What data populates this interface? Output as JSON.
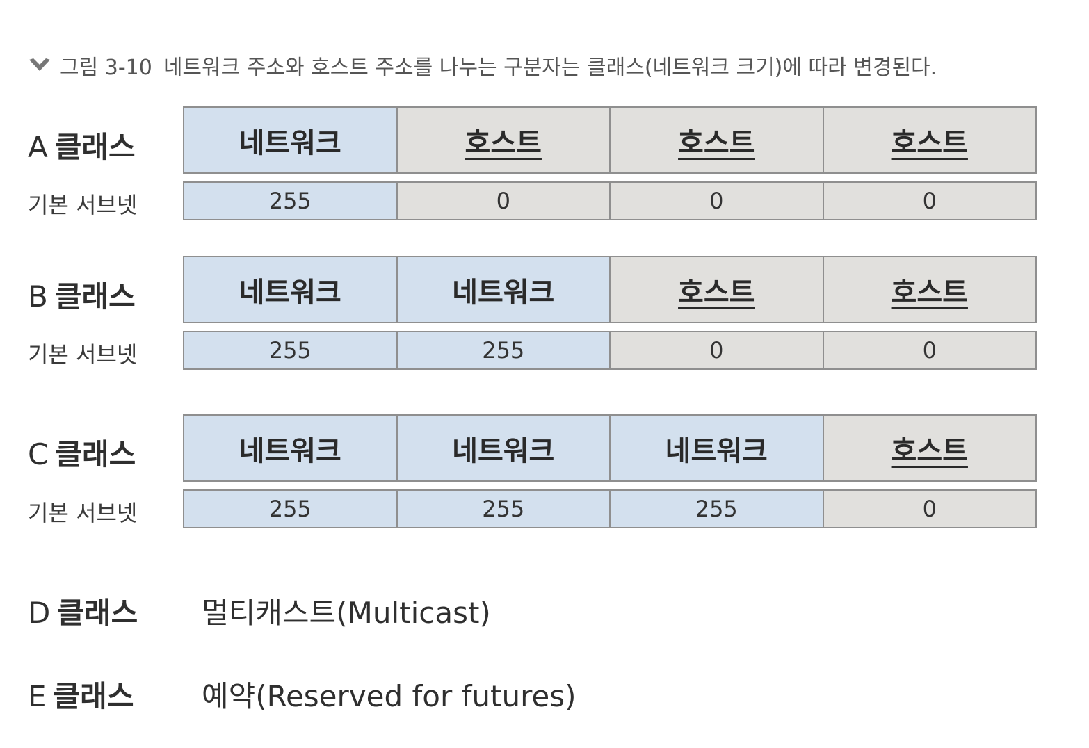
{
  "caption": {
    "figure_number": "그림 3-10",
    "text": "네트워크 주소와 호스트 주소를 나누는 구분자는 클래스(네트워크 크기)에 따라 변경된다.",
    "icon": "chevron-down-icon"
  },
  "colors": {
    "network_cell": "#d3e0ee",
    "host_cell": "#e1e0dd",
    "border": "#8f8f8f"
  },
  "classes": [
    {
      "letter": "A",
      "name": "클래스",
      "octets": [
        "네트워크",
        "호스트",
        "호스트",
        "호스트"
      ],
      "octet_kinds": [
        "net",
        "host",
        "host",
        "host"
      ],
      "mask_label": "기본 서브넷",
      "mask": [
        "255",
        "0",
        "0",
        "0"
      ]
    },
    {
      "letter": "B",
      "name": "클래스",
      "octets": [
        "네트워크",
        "네트워크",
        "호스트",
        "호스트"
      ],
      "octet_kinds": [
        "net",
        "net",
        "host",
        "host"
      ],
      "mask_label": "기본 서브넷",
      "mask": [
        "255",
        "255",
        "0",
        "0"
      ]
    },
    {
      "letter": "C",
      "name": "클래스",
      "octets": [
        "네트워크",
        "네트워크",
        "네트워크",
        "호스트"
      ],
      "octet_kinds": [
        "net",
        "net",
        "net",
        "host"
      ],
      "mask_label": "기본 서브넷",
      "mask": [
        "255",
        "255",
        "255",
        "0"
      ]
    }
  ],
  "special_classes": [
    {
      "letter": "D",
      "name": "클래스",
      "description": "멀티캐스트(Multicast)"
    },
    {
      "letter": "E",
      "name": "클래스",
      "description": "예약(Reserved for futures)"
    }
  ]
}
